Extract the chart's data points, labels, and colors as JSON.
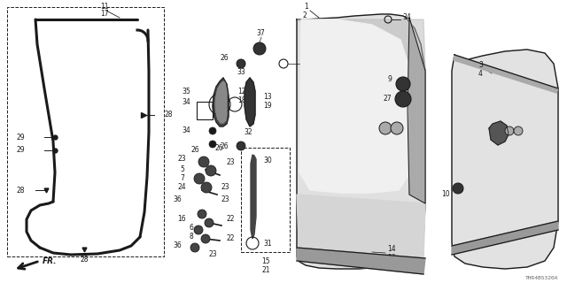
{
  "bg_color": "#ffffff",
  "diagram_color": "#1a1a1a",
  "part_code": "THR4B5320A",
  "figsize": [
    6.4,
    3.2
  ],
  "dpi": 100
}
